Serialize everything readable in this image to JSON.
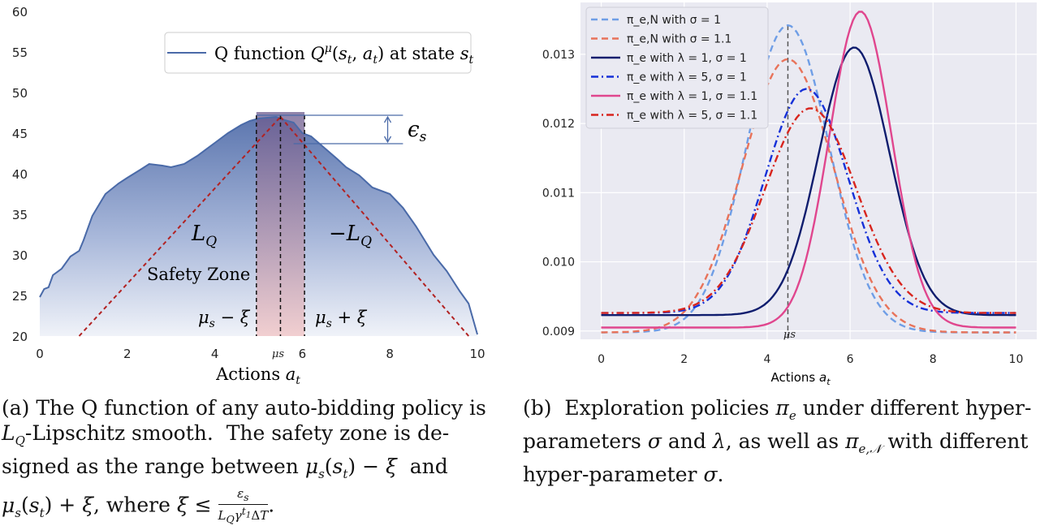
{
  "chart_data": [
    {
      "type": "area",
      "xlim": [
        0,
        10
      ],
      "ylim": [
        20,
        60
      ],
      "x_ticks": [
        "0",
        "2",
        "4",
        "6",
        "8",
        "10"
      ],
      "y_ticks": [
        "20",
        "25",
        "30",
        "35",
        "40",
        "45",
        "50",
        "55",
        "60"
      ],
      "xlabel": "Actions a_t",
      "series": [
        {
          "name": "Q function Q^μ(s_t, a_t) at state s_t",
          "x": [
            0,
            0.1,
            0.2,
            0.3,
            0.5,
            0.7,
            0.9,
            1.0,
            1.2,
            1.5,
            1.8,
            2.0,
            2.3,
            2.5,
            2.8,
            3.0,
            3.3,
            3.6,
            4.0,
            4.3,
            4.6,
            4.8,
            5.0,
            5.2,
            5.4,
            5.6,
            5.8,
            6.0,
            6.2,
            6.5,
            6.8,
            7.0,
            7.3,
            7.6,
            8.0,
            8.3,
            8.6,
            9.0,
            9.3,
            9.6,
            9.8,
            10.0
          ],
          "y": [
            24.8,
            25.8,
            26.0,
            27.5,
            28.3,
            29.8,
            30.5,
            31.8,
            34.8,
            37.5,
            38.8,
            39.5,
            40.5,
            41.2,
            41.0,
            40.8,
            41.2,
            42.2,
            43.8,
            45.0,
            46.0,
            46.5,
            46.8,
            46.9,
            47.0,
            46.6,
            46.3,
            45.0,
            44.6,
            43.2,
            41.8,
            40.8,
            39.8,
            38.3,
            37.5,
            35.8,
            33.5,
            30.0,
            28.0,
            25.5,
            24.0,
            20.2
          ]
        }
      ],
      "annotations": {
        "mu_s": 5.5,
        "xi": 0.55,
        "lines": [
          {
            "name": "L_Q",
            "x": [
              0.9,
              5.5
            ],
            "y": [
              20,
              47
            ]
          },
          {
            "name": "-L_Q",
            "x": [
              5.5,
              9.8
            ],
            "y": [
              47,
              20
            ]
          }
        ],
        "epsilon_s": {
          "y_top": 47.2,
          "y_bottom": 43.7
        }
      },
      "labels": {
        "lq": "L",
        "lq_sub": "Q",
        "neg_lq": "−L",
        "neg_lq_sub": "Q",
        "safety_zone": "Safety Zone",
        "mu_minus_xi": "μs − ξ",
        "mu_plus_xi": "μs + ξ",
        "mu_tick": "μs",
        "epsilon": "εs"
      }
    },
    {
      "type": "line",
      "xlim": [
        -0.5,
        10.5
      ],
      "ylim": [
        0.00888,
        0.01375
      ],
      "x_ticks": [
        "0",
        "2",
        "4",
        "6",
        "8",
        "10"
      ],
      "y_ticks": [
        "0.009",
        "0.010",
        "0.011",
        "0.012",
        "0.013"
      ],
      "xlabel": "Actions a_t",
      "mu_s": 4.5,
      "mu_label": "μs",
      "series": [
        {
          "name": "π_e,N with σ = 1",
          "color": "#6f9ee6",
          "dash": "dashed",
          "base": 0.00898,
          "peak": 0.01342,
          "center": 4.5,
          "sigma": 1.0
        },
        {
          "name": "π_e,N with σ = 1.1",
          "color": "#e8735a",
          "dash": "dashed",
          "base": 0.00898,
          "peak": 0.01293,
          "center": 4.5,
          "sigma": 1.1
        },
        {
          "name": "π_e with λ = 1, σ = 1",
          "color": "#0f1d6e",
          "dash": "solid",
          "base": 0.00923,
          "peak": 0.0131,
          "center": 6.1,
          "sigma": 0.85
        },
        {
          "name": "π_e with λ = 5, σ = 1",
          "color": "#1530d8",
          "dash": "dashdot",
          "base": 0.00926,
          "peak": 0.0125,
          "center": 4.95,
          "sigma": 1.0
        },
        {
          "name": "π_e with λ = 1, σ = 1.1",
          "color": "#e0468e",
          "dash": "solid",
          "base": 0.00905,
          "peak": 0.01362,
          "center": 6.25,
          "sigma": 0.75
        },
        {
          "name": "π_e with λ = 5, σ = 1.1",
          "color": "#d8251e",
          "dash": "dashdot",
          "base": 0.00926,
          "peak": 0.01222,
          "center": 5.05,
          "sigma": 1.1
        }
      ]
    }
  ],
  "captions": {
    "left": [
      "(a)  The Q function of any auto-bidding policy is",
      "L_Q-Lipschitz smooth.  The safety zone is de-",
      "signed as the range between μs(st) − ξ  and",
      "μs(st) + ξ, where ξ ≤ εs / (LQ γ^t1 ΔT)."
    ],
    "right": [
      "(b)  Exploration policies πe under different hyper-",
      "parameters σ and λ, as well as πe,N with different",
      "hyper-parameter σ."
    ]
  },
  "colors": {
    "panel_b_background": "#eaeaf2",
    "q_line": "#4a6aa8",
    "lipschitz_line": "#b22222",
    "safety_fill": "#e8b4b4"
  }
}
